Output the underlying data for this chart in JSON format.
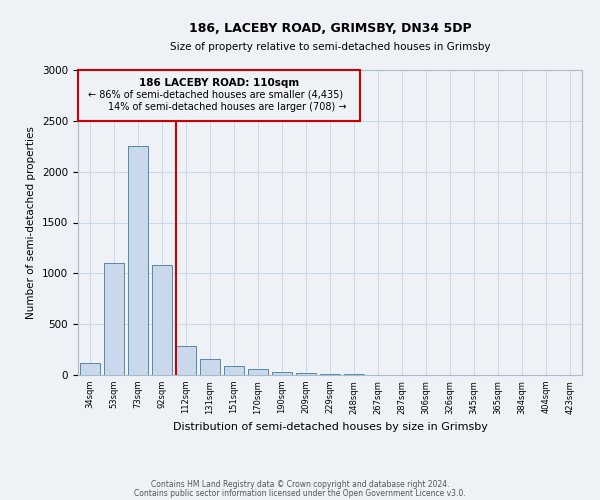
{
  "title": "186, LACEBY ROAD, GRIMSBY, DN34 5DP",
  "subtitle": "Size of property relative to semi-detached houses in Grimsby",
  "xlabel": "Distribution of semi-detached houses by size in Grimsby",
  "ylabel": "Number of semi-detached properties",
  "bar_values": [
    120,
    1100,
    2250,
    1080,
    290,
    160,
    90,
    55,
    30,
    20,
    10,
    5,
    3,
    2,
    2,
    2,
    2,
    2,
    2,
    2,
    2
  ],
  "categories": [
    "34sqm",
    "53sqm",
    "73sqm",
    "92sqm",
    "112sqm",
    "131sqm",
    "151sqm",
    "170sqm",
    "190sqm",
    "209sqm",
    "229sqm",
    "248sqm",
    "267sqm",
    "287sqm",
    "306sqm",
    "326sqm",
    "345sqm",
    "365sqm",
    "384sqm",
    "404sqm",
    "423sqm"
  ],
  "bar_color": "#c9d9eb",
  "bar_edge_color": "#5588aa",
  "vline_x_index": 4,
  "vline_color": "#cc0000",
  "annotation_box_color": "#cc0000",
  "annotation_line1": "186 LACEBY ROAD: 110sqm",
  "annotation_line2": "← 86% of semi-detached houses are smaller (4,435)",
  "annotation_line3": "14% of semi-detached houses are larger (708) →",
  "ylim": [
    0,
    3000
  ],
  "yticks": [
    0,
    500,
    1000,
    1500,
    2000,
    2500,
    3000
  ],
  "footer1": "Contains HM Land Registry data © Crown copyright and database right 2024.",
  "footer2": "Contains public sector information licensed under the Open Government Licence v3.0.",
  "bg_color": "#eef2f7",
  "plot_bg_color": "#eef2f7",
  "grid_color": "#c8d8e8"
}
